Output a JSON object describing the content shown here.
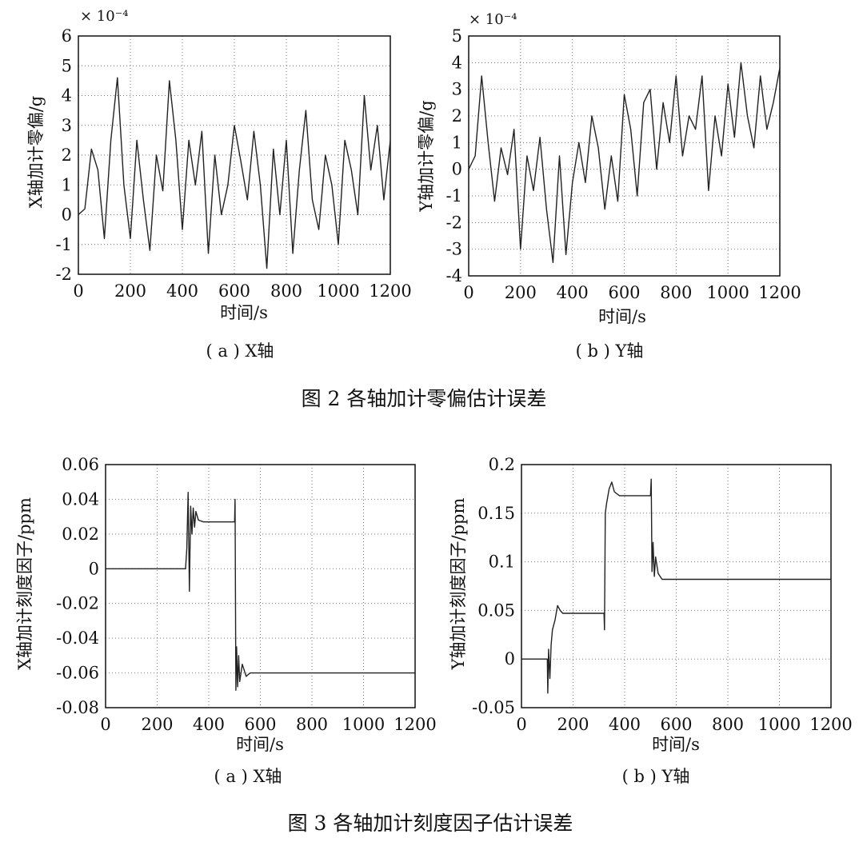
{
  "figure2": {
    "caption": "图 2  各轴加计零偏估计误差",
    "panels": [
      {
        "sublabel": "( a ) X轴",
        "xlabel": "时间/s",
        "ylabel": "X轴加计零偏/g",
        "multiplier": "× 10⁻⁴"
      },
      {
        "sublabel": "( b ) Y轴",
        "xlabel": "时间/s",
        "ylabel": "Y轴加计零偏/g",
        "multiplier": "× 10⁻⁴"
      }
    ]
  },
  "figure3": {
    "caption": "图 3  各轴加计刻度因子估计误差",
    "panels": [
      {
        "sublabel": "( a ) X轴",
        "xlabel": "时间/s",
        "ylabel": "X轴加计刻度因子/ppm"
      },
      {
        "sublabel": "( b ) Y轴",
        "xlabel": "时间/s",
        "ylabel": "Y轴加计刻度因子/ppm"
      }
    ]
  },
  "chart_data": [
    {
      "type": "line",
      "xlim": [
        0,
        1200
      ],
      "ylim": [
        -2,
        6
      ],
      "xticks": [
        "0",
        "200",
        "400",
        "600",
        "800",
        "1000",
        "1200"
      ],
      "yticks": [
        "-2",
        "-1",
        "0",
        "1",
        "2",
        "3",
        "4",
        "5",
        "6"
      ],
      "grid": true,
      "series": [
        {
          "x": [
            0,
            25,
            50,
            75,
            100,
            125,
            150,
            175,
            200,
            225,
            250,
            275,
            300,
            325,
            350,
            375,
            400,
            425,
            450,
            475,
            500,
            525,
            550,
            575,
            600,
            625,
            650,
            675,
            700,
            725,
            750,
            775,
            800,
            825,
            850,
            875,
            900,
            925,
            950,
            975,
            1000,
            1025,
            1050,
            1075,
            1100,
            1125,
            1150,
            1175,
            1200
          ],
          "values": [
            0,
            0.2,
            2.2,
            1.5,
            -0.8,
            2.5,
            4.6,
            1.0,
            -0.8,
            2.5,
            0.5,
            -1.2,
            2.0,
            0.8,
            4.5,
            2.5,
            -0.5,
            2.5,
            1.0,
            2.8,
            -1.3,
            2.0,
            0.0,
            1.0,
            3.0,
            1.8,
            0.5,
            2.8,
            1.0,
            -1.8,
            2.2,
            0.0,
            2.5,
            -1.3,
            1.5,
            3.5,
            0.5,
            -0.5,
            2.0,
            1.0,
            -1.0,
            2.5,
            1.5,
            0.0,
            4.0,
            1.5,
            3.0,
            0.5,
            2.5
          ]
        }
      ]
    },
    {
      "type": "line",
      "xlim": [
        0,
        1200
      ],
      "ylim": [
        -4,
        5
      ],
      "xticks": [
        "0",
        "200",
        "400",
        "600",
        "800",
        "1000",
        "1200"
      ],
      "yticks": [
        "-4",
        "-3",
        "-2",
        "-1",
        "0",
        "1",
        "2",
        "3",
        "4",
        "5"
      ],
      "grid": true,
      "series": [
        {
          "x": [
            0,
            25,
            50,
            75,
            100,
            125,
            150,
            175,
            200,
            225,
            250,
            275,
            300,
            325,
            350,
            375,
            400,
            425,
            450,
            475,
            500,
            525,
            550,
            575,
            600,
            625,
            650,
            675,
            700,
            725,
            750,
            775,
            800,
            825,
            850,
            875,
            900,
            925,
            950,
            975,
            1000,
            1025,
            1050,
            1075,
            1100,
            1125,
            1150,
            1175,
            1200
          ],
          "values": [
            0,
            0.5,
            3.5,
            1.0,
            -1.2,
            0.8,
            -0.2,
            1.5,
            -3.0,
            0.5,
            -0.8,
            1.2,
            -1.5,
            -3.5,
            0.5,
            -3.2,
            -0.5,
            1.0,
            -0.5,
            2.0,
            0.8,
            -1.5,
            0.5,
            -1.2,
            2.8,
            1.5,
            -1.0,
            2.5,
            3.0,
            0.0,
            2.5,
            1.0,
            3.5,
            0.5,
            2.0,
            1.5,
            3.5,
            -0.8,
            2.0,
            0.5,
            3.2,
            1.2,
            4.0,
            2.0,
            0.8,
            3.5,
            1.5,
            2.5,
            3.8
          ]
        }
      ]
    },
    {
      "type": "line",
      "xlim": [
        0,
        1200
      ],
      "ylim": [
        -0.08,
        0.06
      ],
      "xticks": [
        "0",
        "200",
        "400",
        "600",
        "800",
        "1000",
        "1200"
      ],
      "yticks": [
        "-0.08",
        "-0.06",
        "-0.04",
        "-0.02",
        "0",
        "0.02",
        "0.04",
        "0.06"
      ],
      "grid": true,
      "series": [
        {
          "x": [
            0,
            310,
            315,
            320,
            325,
            330,
            335,
            340,
            345,
            350,
            360,
            380,
            400,
            500,
            502,
            505,
            508,
            512,
            516,
            520,
            530,
            545,
            560,
            600,
            1200
          ],
          "values": [
            0,
            0,
            0.012,
            0.044,
            -0.013,
            0.036,
            0.02,
            0.035,
            0.024,
            0.033,
            0.028,
            0.027,
            0.027,
            0.027,
            0.04,
            -0.07,
            -0.045,
            -0.068,
            -0.05,
            -0.065,
            -0.055,
            -0.062,
            -0.06,
            -0.06,
            -0.06
          ]
        }
      ]
    },
    {
      "type": "line",
      "xlim": [
        0,
        1200
      ],
      "ylim": [
        -0.05,
        0.2
      ],
      "xticks": [
        "0",
        "200",
        "400",
        "600",
        "800",
        "1000",
        "1200"
      ],
      "yticks": [
        "-0.05",
        "0",
        "0.05",
        "0.1",
        "0.15",
        "0.2"
      ],
      "grid": true,
      "series": [
        {
          "x": [
            0,
            100,
            102,
            105,
            110,
            115,
            120,
            130,
            140,
            150,
            160,
            200,
            320,
            322,
            325,
            330,
            340,
            350,
            360,
            380,
            500,
            503,
            506,
            510,
            515,
            520,
            530,
            545,
            560,
            1200
          ],
          "values": [
            0,
            0,
            -0.035,
            0.01,
            -0.02,
            0.015,
            0.03,
            0.04,
            0.055,
            0.05,
            0.047,
            0.047,
            0.047,
            0.03,
            0.15,
            0.16,
            0.175,
            0.182,
            0.172,
            0.168,
            0.168,
            0.185,
            0.09,
            0.12,
            0.085,
            0.105,
            0.088,
            0.082,
            0.082,
            0.082
          ]
        }
      ]
    }
  ]
}
